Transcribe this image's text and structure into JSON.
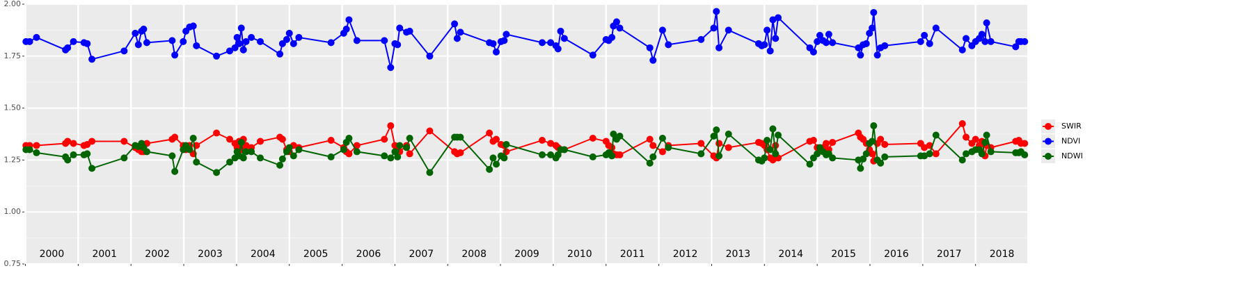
{
  "chart_data": {
    "type": "line",
    "x": [
      2000.01,
      2000.08,
      2000.21,
      2000.76,
      2000.8,
      2000.91,
      2001.11,
      2001.17,
      2001.26,
      2001.87,
      2002.08,
      2002.14,
      2002.2,
      2002.24,
      2002.3,
      2002.78,
      2002.83,
      2002.99,
      2003.04,
      2003.11,
      2003.18,
      2003.24,
      2003.62,
      2003.87,
      2003.97,
      2004.01,
      2004.05,
      2004.09,
      2004.13,
      2004.18,
      2004.28,
      2004.45,
      2004.82,
      2004.87,
      2004.95,
      2005.0,
      2005.08,
      2005.18,
      2005.79,
      2006.03,
      2006.08,
      2006.13,
      2006.28,
      2006.8,
      2006.92,
      2007.0,
      2007.05,
      2007.09,
      2007.22,
      2007.28,
      2007.66,
      2008.13,
      2008.18,
      2008.24,
      2008.79,
      2008.86,
      2008.92,
      2009.01,
      2009.07,
      2009.11,
      2009.79,
      2009.95,
      2010.05,
      2010.09,
      2010.14,
      2010.21,
      2010.75,
      2011.0,
      2011.05,
      2011.11,
      2011.14,
      2011.2,
      2011.26,
      2011.83,
      2011.89,
      2012.07,
      2012.18,
      2012.8,
      2013.04,
      2013.09,
      2013.14,
      2013.32,
      2013.89,
      2013.95,
      2014.0,
      2014.05,
      2014.11,
      2014.16,
      2014.21,
      2014.26,
      2014.86,
      2014.93,
      2015.0,
      2015.05,
      2015.11,
      2015.17,
      2015.22,
      2015.29,
      2015.78,
      2015.82,
      2015.87,
      2015.93,
      2015.99,
      2016.04,
      2016.07,
      2016.14,
      2016.2,
      2016.28,
      2016.96,
      2017.03,
      2017.13,
      2017.25,
      2017.75,
      2017.82,
      2017.93,
      2018.0,
      2018.07,
      2018.12,
      2018.18,
      2018.21,
      2018.29,
      2018.76,
      2018.82,
      2018.86,
      2018.93
    ],
    "series": [
      {
        "name": "SWIR",
        "color": "#ff0000",
        "values": [
          1.32,
          1.32,
          1.32,
          1.33,
          1.34,
          1.33,
          1.32,
          1.325,
          1.34,
          1.34,
          1.31,
          1.3,
          1.29,
          1.29,
          1.33,
          1.35,
          1.36,
          1.32,
          1.3,
          1.32,
          1.28,
          1.32,
          1.38,
          1.35,
          1.33,
          1.31,
          1.34,
          1.3,
          1.35,
          1.32,
          1.31,
          1.34,
          1.36,
          1.35,
          1.3,
          1.29,
          1.32,
          1.31,
          1.345,
          1.31,
          1.29,
          1.28,
          1.32,
          1.35,
          1.415,
          1.32,
          1.31,
          1.29,
          1.32,
          1.28,
          1.39,
          1.29,
          1.28,
          1.285,
          1.38,
          1.34,
          1.35,
          1.325,
          1.32,
          1.29,
          1.345,
          1.33,
          1.32,
          1.31,
          1.3,
          1.3,
          1.355,
          1.34,
          1.32,
          1.31,
          1.28,
          1.275,
          1.275,
          1.35,
          1.32,
          1.29,
          1.32,
          1.33,
          1.27,
          1.26,
          1.33,
          1.31,
          1.335,
          1.33,
          1.32,
          1.3,
          1.26,
          1.25,
          1.32,
          1.26,
          1.34,
          1.345,
          1.31,
          1.3,
          1.31,
          1.33,
          1.3,
          1.335,
          1.38,
          1.36,
          1.35,
          1.33,
          1.3,
          1.28,
          1.245,
          1.33,
          1.35,
          1.325,
          1.33,
          1.31,
          1.32,
          1.28,
          1.425,
          1.36,
          1.33,
          1.35,
          1.32,
          1.34,
          1.27,
          1.32,
          1.31,
          1.34,
          1.345,
          1.33,
          1.33
        ]
      },
      {
        "name": "NDVI",
        "color": "#0000ff",
        "values": [
          1.82,
          1.82,
          1.84,
          1.78,
          1.79,
          1.82,
          1.815,
          1.81,
          1.735,
          1.775,
          1.86,
          1.805,
          1.87,
          1.88,
          1.815,
          1.825,
          1.755,
          1.82,
          1.87,
          1.89,
          1.895,
          1.8,
          1.75,
          1.775,
          1.79,
          1.84,
          1.81,
          1.885,
          1.78,
          1.82,
          1.84,
          1.82,
          1.76,
          1.81,
          1.83,
          1.86,
          1.81,
          1.84,
          1.815,
          1.86,
          1.88,
          1.925,
          1.825,
          1.825,
          1.695,
          1.81,
          1.805,
          1.885,
          1.865,
          1.87,
          1.75,
          1.905,
          1.835,
          1.865,
          1.815,
          1.81,
          1.77,
          1.82,
          1.825,
          1.855,
          1.815,
          1.815,
          1.8,
          1.785,
          1.87,
          1.835,
          1.755,
          1.83,
          1.825,
          1.84,
          1.895,
          1.915,
          1.885,
          1.79,
          1.73,
          1.875,
          1.805,
          1.83,
          1.885,
          1.965,
          1.79,
          1.875,
          1.81,
          1.8,
          1.805,
          1.875,
          1.775,
          1.925,
          1.835,
          1.935,
          1.79,
          1.77,
          1.82,
          1.85,
          1.825,
          1.815,
          1.855,
          1.815,
          1.79,
          1.755,
          1.805,
          1.81,
          1.86,
          1.885,
          1.96,
          1.755,
          1.79,
          1.8,
          1.82,
          1.85,
          1.81,
          1.885,
          1.78,
          1.835,
          1.8,
          1.82,
          1.835,
          1.855,
          1.82,
          1.91,
          1.82,
          1.795,
          1.82,
          1.82,
          1.82
        ]
      },
      {
        "name": "NDWI",
        "color": "#006400",
        "values": [
          1.3,
          1.3,
          1.285,
          1.265,
          1.25,
          1.275,
          1.275,
          1.28,
          1.21,
          1.26,
          1.32,
          1.315,
          1.33,
          1.31,
          1.29,
          1.27,
          1.195,
          1.3,
          1.32,
          1.3,
          1.355,
          1.24,
          1.19,
          1.24,
          1.26,
          1.29,
          1.27,
          1.335,
          1.26,
          1.29,
          1.29,
          1.26,
          1.225,
          1.255,
          1.29,
          1.31,
          1.27,
          1.3,
          1.265,
          1.3,
          1.335,
          1.355,
          1.29,
          1.27,
          1.26,
          1.29,
          1.265,
          1.32,
          1.31,
          1.355,
          1.19,
          1.36,
          1.36,
          1.36,
          1.205,
          1.26,
          1.23,
          1.27,
          1.26,
          1.325,
          1.275,
          1.275,
          1.26,
          1.275,
          1.3,
          1.3,
          1.265,
          1.275,
          1.285,
          1.27,
          1.375,
          1.35,
          1.365,
          1.235,
          1.265,
          1.355,
          1.31,
          1.28,
          1.365,
          1.395,
          1.27,
          1.375,
          1.25,
          1.245,
          1.26,
          1.345,
          1.3,
          1.4,
          1.28,
          1.37,
          1.23,
          1.26,
          1.28,
          1.31,
          1.29,
          1.275,
          1.28,
          1.26,
          1.25,
          1.21,
          1.255,
          1.28,
          1.33,
          1.34,
          1.415,
          1.25,
          1.235,
          1.265,
          1.27,
          1.27,
          1.28,
          1.37,
          1.25,
          1.28,
          1.29,
          1.3,
          1.3,
          1.28,
          1.335,
          1.37,
          1.29,
          1.285,
          1.285,
          1.29,
          1.275
        ]
      }
    ],
    "xlim": [
      1999.98,
      2018.98
    ],
    "xticks": [
      2000,
      2001,
      2002,
      2003,
      2004,
      2005,
      2006,
      2007,
      2008,
      2009,
      2010,
      2011,
      2012,
      2013,
      2014,
      2015,
      2016,
      2017,
      2018
    ],
    "ylim": [
      0.75,
      2.0
    ],
    "yticks": [
      0.75,
      {
        "value": 1.0,
        "label": "1.00"
      },
      1.25,
      {
        "value": 1.5,
        "label": "1.50"
      },
      1.75,
      {
        "value": 2.0,
        "label": "2.00"
      }
    ],
    "grid": true,
    "legend": "right"
  }
}
